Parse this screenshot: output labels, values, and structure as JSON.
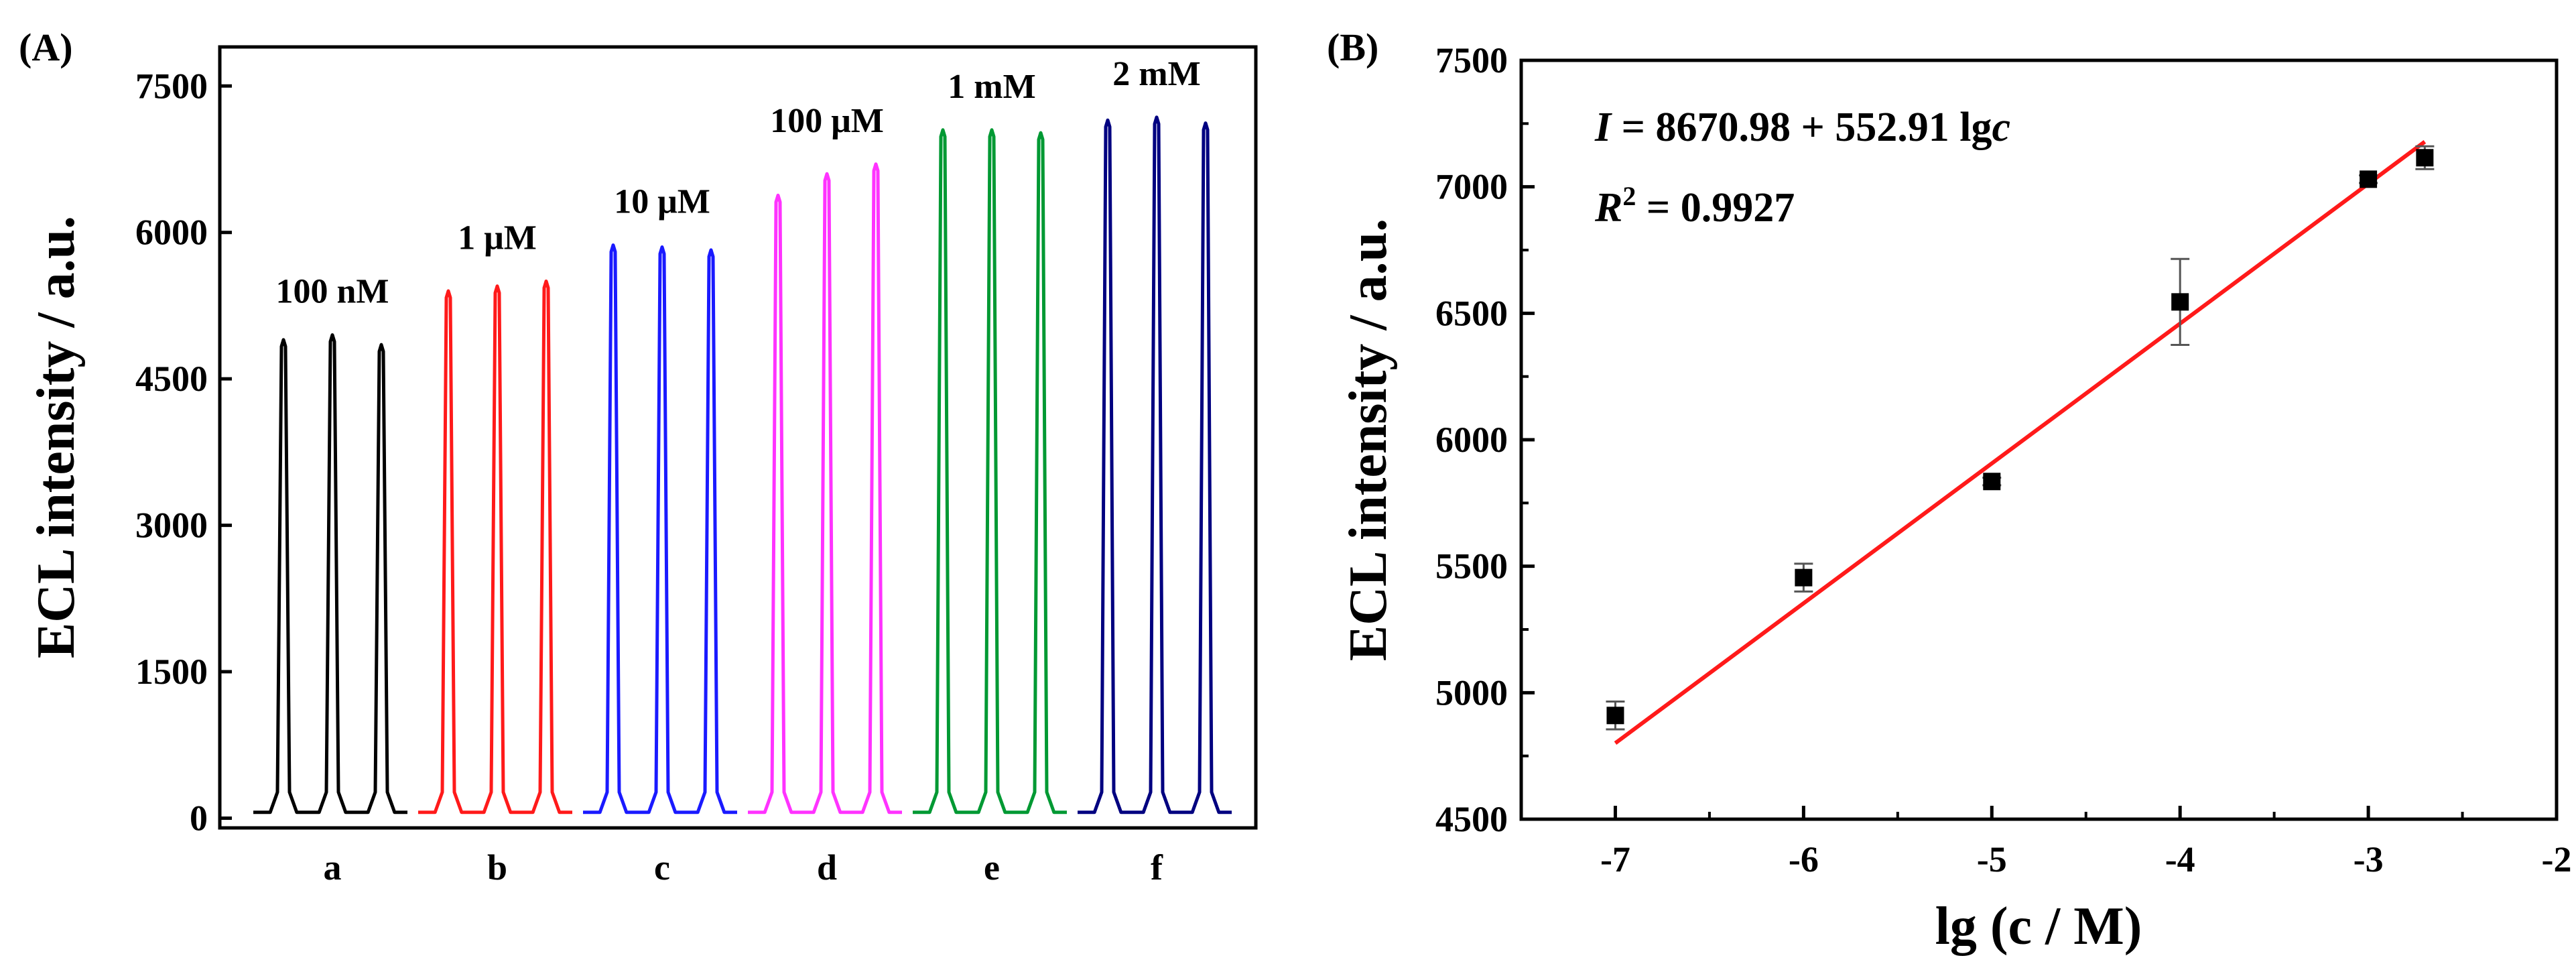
{
  "colors": {
    "axis": "#000000",
    "fit": "#ff1a1a",
    "series": [
      "#000000",
      "#ff1a1a",
      "#1a1aff",
      "#ff33ff",
      "#009933",
      "#000080"
    ]
  },
  "chart_data": [
    {
      "type": "line",
      "panel_label": "(A)",
      "ylabel": "ECL intensity / a.u.",
      "ylim": [
        -100,
        7900
      ],
      "y_ticks": [
        0,
        1500,
        3000,
        4500,
        6000,
        7500
      ],
      "y_tick_labels": [
        "0",
        "1500",
        "3000",
        "4500",
        "6000",
        "7500"
      ],
      "baseline": 60,
      "series": [
        {
          "name": "a",
          "label": "100 nM",
          "peaks": [
            4900,
            4950,
            4850
          ]
        },
        {
          "name": "b",
          "label": "1 μM",
          "peaks": [
            5400,
            5450,
            5500
          ]
        },
        {
          "name": "c",
          "label": "10 μM",
          "peaks": [
            5870,
            5850,
            5820
          ]
        },
        {
          "name": "d",
          "label": "100 μM",
          "peaks": [
            6380,
            6600,
            6700
          ]
        },
        {
          "name": "e",
          "label": "1 mM",
          "peaks": [
            7050,
            7050,
            7020
          ]
        },
        {
          "name": "f",
          "label": "2 mM",
          "peaks": [
            7150,
            7180,
            7120
          ]
        }
      ]
    },
    {
      "type": "scatter",
      "panel_label": "(B)",
      "xlabel": "lg (c / M)",
      "ylabel": "ECL intensity / a.u.",
      "xlim": [
        -7.5,
        -2
      ],
      "ylim": [
        4500,
        7500
      ],
      "x_ticks": [
        -7,
        -6,
        -5,
        -4,
        -3,
        -2
      ],
      "x_tick_labels": [
        "-7",
        "-6",
        "-5",
        "-4",
        "-3",
        "-2"
      ],
      "y_ticks": [
        4500,
        5000,
        5500,
        6000,
        6500,
        7000,
        7500
      ],
      "y_tick_labels": [
        "4500",
        "5000",
        "5500",
        "6000",
        "6500",
        "7000",
        "7500"
      ],
      "points": [
        {
          "x": -7,
          "y": 4910,
          "err": 55
        },
        {
          "x": -6,
          "y": 5455,
          "err": 55
        },
        {
          "x": -5,
          "y": 5835,
          "err": 15
        },
        {
          "x": -4,
          "y": 6545,
          "err": 170
        },
        {
          "x": -3,
          "y": 7030,
          "err": 15
        },
        {
          "x": -2.7,
          "y": 7115,
          "err": 45
        }
      ],
      "fit": {
        "intercept": 8670.98,
        "slope": 552.91,
        "x_range": [
          -7,
          -2.7
        ]
      },
      "equation_text": {
        "I": "I",
        "eq": " = 8670.98 + 552.91 lg",
        "c": "c"
      },
      "r2_text": {
        "R": "R",
        "sup": "2",
        "eq": " = 0.9927"
      }
    }
  ]
}
